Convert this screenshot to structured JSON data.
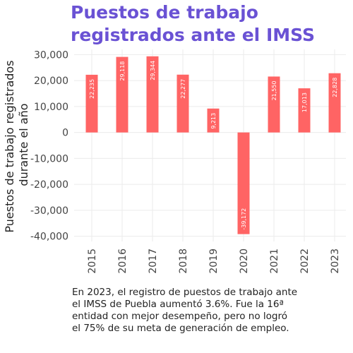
{
  "title": "Puestos de trabajo registrados ante el IMSS",
  "caption": "En 2023, el registro de puestos de trabajo ante el IMSS de Puebla aumentó 3.6%. Fue la 16ª entidad con mejor desempeño, pero no logró el 75% de su meta de generación de empleo.",
  "chart_data": {
    "type": "bar",
    "title": "Puestos de trabajo registrados ante el IMSS",
    "xlabel": "",
    "ylabel": "Puestos de trabajo registrados durante el año",
    "categories": [
      "2015",
      "2016",
      "2017",
      "2018",
      "2019",
      "2020",
      "2021",
      "2022",
      "2023"
    ],
    "values": [
      22235,
      29118,
      29344,
      22277,
      9213,
      -39172,
      21550,
      17013,
      22828
    ],
    "value_labels": [
      "22,235",
      "29,118",
      "29,344",
      "22,277",
      "9,213",
      "-39,172",
      "21,550",
      "17,013",
      "22,828"
    ],
    "yticks": [
      30000,
      20000,
      10000,
      0,
      -10000,
      -20000,
      -30000,
      -40000
    ],
    "ytick_labels": [
      "30,000",
      "20,000",
      "10,000",
      "0",
      "-10,000",
      "-20,000",
      "-30,000",
      "-40,000"
    ],
    "ylim": [
      -42000,
      32000
    ],
    "grid": true,
    "bar_color": "#ff6464"
  }
}
